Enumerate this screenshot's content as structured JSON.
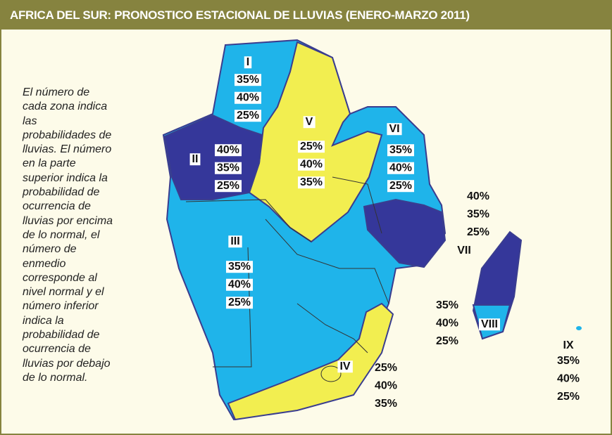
{
  "header": {
    "title": "AFRICA DEL SUR: PRONOSTICO ESTACIONAL DE LLUVIAS (ENERO-MARZO 2011)"
  },
  "description": [
    "El número de",
    "cada zona indica",
    "las",
    "probabilidades de",
    "lluvias. El número",
    "en la parte",
    "superior indica la",
    "probabilidad de",
    "ocurrencia de",
    "lluvias por encima",
    "de lo normal, el",
    "número de",
    "enmedio",
    "corresponde al",
    "nivel normal y el",
    "número inferior",
    "indica la",
    "probabilidad de",
    "ocurrencia de",
    "lluvias por debajo",
    "de lo normal."
  ],
  "zones": [
    {
      "label": "I",
      "above": "35%",
      "normal": "40%",
      "below": "25%"
    },
    {
      "label": "II",
      "above": "40%",
      "normal": "35%",
      "below": "25%"
    },
    {
      "label": "III",
      "above": "35%",
      "normal": "40%",
      "below": "25%"
    },
    {
      "label": "IV",
      "above": "25%",
      "normal": "40%",
      "below": "35%"
    },
    {
      "label": "V",
      "above": "25%",
      "normal": "40%",
      "below": "35%"
    },
    {
      "label": "VI",
      "above": "35%",
      "normal": "40%",
      "below": "25%"
    },
    {
      "label": "VII",
      "above": "40%",
      "normal": "35%",
      "below": "25%"
    },
    {
      "label": "VIII",
      "above": "35%",
      "normal": "40%",
      "below": "25%"
    },
    {
      "label": "IX",
      "above": "35%",
      "normal": "40%",
      "below": "25%"
    }
  ]
}
